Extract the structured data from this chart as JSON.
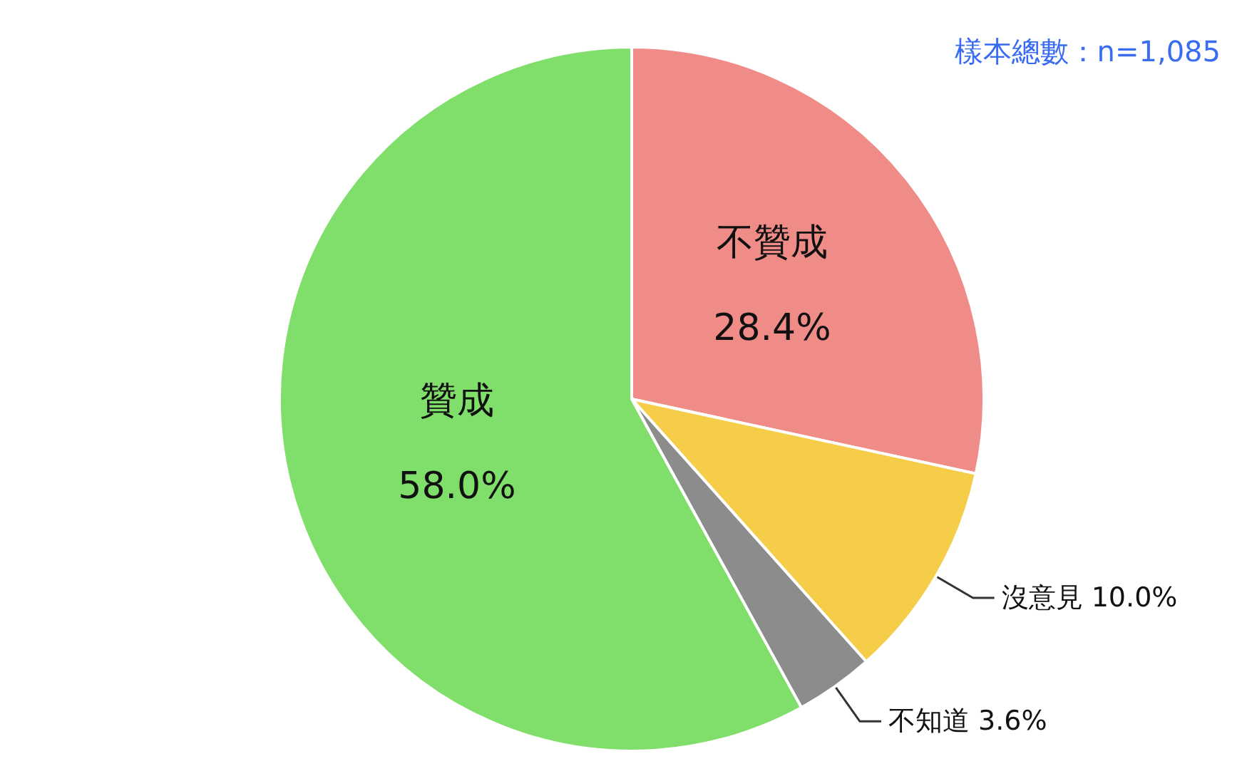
{
  "chart_data": {
    "type": "pie",
    "categories": [
      "不贊成",
      "沒意見",
      "不知道",
      "贊成"
    ],
    "values": [
      28.4,
      10.0,
      3.6,
      58.0
    ],
    "colors": [
      "#f08c88",
      "#f6cd48",
      "#8c8c8c",
      "#80de6a"
    ],
    "value_labels": [
      "28.4%",
      "10.0%",
      "3.6%",
      "58.0%"
    ],
    "legend": false,
    "annotations": [
      "樣本總數：n=1,085"
    ]
  }
}
